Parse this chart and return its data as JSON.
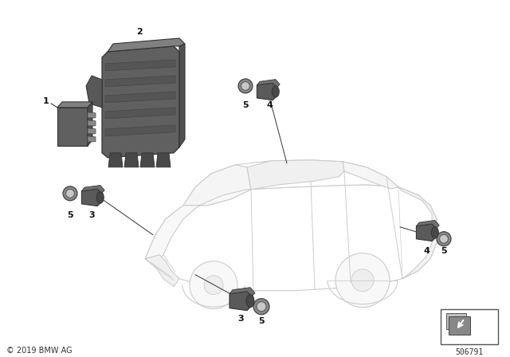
{
  "background_color": "#ffffff",
  "copyright": "© 2019 BMW AG",
  "part_number": "506791",
  "fig_width": 6.4,
  "fig_height": 4.48,
  "dpi": 100,
  "car_outline_color": "#cccccc",
  "car_fill_color": "#ffffff",
  "part_color_dark": "#5a5a5a",
  "part_color_mid": "#707070",
  "part_color_light": "#909090",
  "part_edge_color": "#333333",
  "label_color": "#111111"
}
